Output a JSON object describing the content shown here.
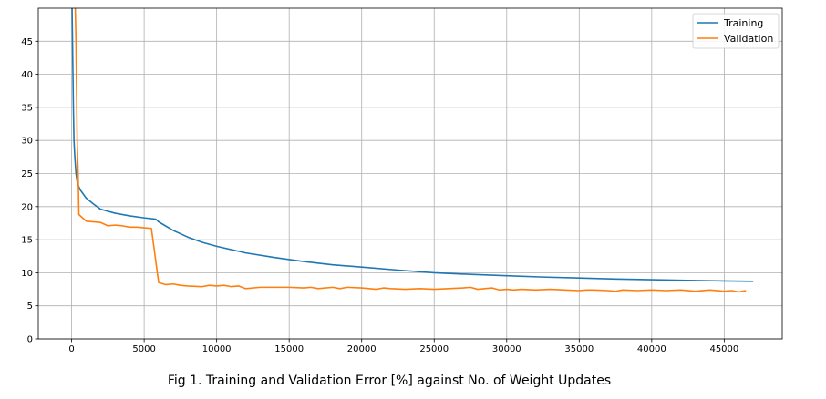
{
  "caption": "Fig 1. Training and Validation Error [%] against No. of Weight Updates",
  "chart_data": {
    "type": "line",
    "title": "",
    "xlabel": "",
    "ylabel": "",
    "xlim": [
      -2300,
      49000
    ],
    "ylim": [
      0,
      50
    ],
    "grid": true,
    "legend_position": "top-right",
    "x_ticks": [
      0,
      5000,
      10000,
      15000,
      20000,
      25000,
      30000,
      35000,
      40000,
      45000
    ],
    "y_ticks": [
      0,
      5,
      10,
      15,
      20,
      25,
      30,
      35,
      40,
      45
    ],
    "series": [
      {
        "name": "Training",
        "color": "#1f77b4",
        "points": [
          [
            0,
            55
          ],
          [
            60,
            45
          ],
          [
            120,
            35
          ],
          [
            160,
            30
          ],
          [
            220,
            27.5
          ],
          [
            300,
            25
          ],
          [
            400,
            23.5
          ],
          [
            600,
            22.5
          ],
          [
            1000,
            21.3
          ],
          [
            1500,
            20.4
          ],
          [
            2000,
            19.6
          ],
          [
            2500,
            19.3
          ],
          [
            3000,
            19.0
          ],
          [
            4000,
            18.6
          ],
          [
            5000,
            18.3
          ],
          [
            5800,
            18.1
          ],
          [
            6000,
            17.7
          ],
          [
            7000,
            16.4
          ],
          [
            8000,
            15.4
          ],
          [
            9000,
            14.6
          ],
          [
            10000,
            14.0
          ],
          [
            12000,
            13.0
          ],
          [
            14000,
            12.3
          ],
          [
            16000,
            11.7
          ],
          [
            18000,
            11.2
          ],
          [
            20000,
            10.85
          ],
          [
            22500,
            10.4
          ],
          [
            25000,
            10.0
          ],
          [
            27500,
            9.75
          ],
          [
            30000,
            9.55
          ],
          [
            32500,
            9.35
          ],
          [
            35000,
            9.2
          ],
          [
            37500,
            9.05
          ],
          [
            40000,
            8.95
          ],
          [
            42500,
            8.85
          ],
          [
            45000,
            8.75
          ],
          [
            47000,
            8.7
          ]
        ]
      },
      {
        "name": "Validation",
        "color": "#ff7f0e",
        "points": [
          [
            200,
            55
          ],
          [
            300,
            45
          ],
          [
            380,
            30
          ],
          [
            450,
            25
          ],
          [
            500,
            18.8
          ],
          [
            1000,
            17.8
          ],
          [
            2000,
            17.6
          ],
          [
            2500,
            17.1
          ],
          [
            3000,
            17.2
          ],
          [
            3500,
            17.1
          ],
          [
            4000,
            16.9
          ],
          [
            4500,
            16.9
          ],
          [
            5000,
            16.8
          ],
          [
            5500,
            16.7
          ],
          [
            6000,
            8.5
          ],
          [
            6500,
            8.2
          ],
          [
            7000,
            8.3
          ],
          [
            7500,
            8.1
          ],
          [
            8000,
            8.0
          ],
          [
            9000,
            7.9
          ],
          [
            9500,
            8.1
          ],
          [
            10000,
            8.0
          ],
          [
            10500,
            8.1
          ],
          [
            11000,
            7.9
          ],
          [
            11500,
            8.0
          ],
          [
            12000,
            7.6
          ],
          [
            13000,
            7.8
          ],
          [
            14000,
            7.8
          ],
          [
            15000,
            7.8
          ],
          [
            16000,
            7.7
          ],
          [
            16500,
            7.8
          ],
          [
            17000,
            7.6
          ],
          [
            18000,
            7.8
          ],
          [
            18500,
            7.6
          ],
          [
            19000,
            7.8
          ],
          [
            20000,
            7.7
          ],
          [
            21000,
            7.5
          ],
          [
            21500,
            7.7
          ],
          [
            22000,
            7.6
          ],
          [
            23000,
            7.5
          ],
          [
            24000,
            7.6
          ],
          [
            25000,
            7.5
          ],
          [
            26000,
            7.6
          ],
          [
            27000,
            7.7
          ],
          [
            27500,
            7.8
          ],
          [
            28000,
            7.5
          ],
          [
            29000,
            7.7
          ],
          [
            29500,
            7.4
          ],
          [
            30000,
            7.5
          ],
          [
            30500,
            7.4
          ],
          [
            31000,
            7.5
          ],
          [
            32000,
            7.4
          ],
          [
            33000,
            7.5
          ],
          [
            34000,
            7.4
          ],
          [
            35000,
            7.3
          ],
          [
            35500,
            7.4
          ],
          [
            36000,
            7.4
          ],
          [
            37000,
            7.3
          ],
          [
            37500,
            7.2
          ],
          [
            38000,
            7.4
          ],
          [
            39000,
            7.3
          ],
          [
            40000,
            7.4
          ],
          [
            41000,
            7.3
          ],
          [
            42000,
            7.4
          ],
          [
            43000,
            7.2
          ],
          [
            44000,
            7.4
          ],
          [
            45000,
            7.2
          ],
          [
            45500,
            7.3
          ],
          [
            46000,
            7.1
          ],
          [
            46500,
            7.3
          ]
        ]
      }
    ]
  }
}
